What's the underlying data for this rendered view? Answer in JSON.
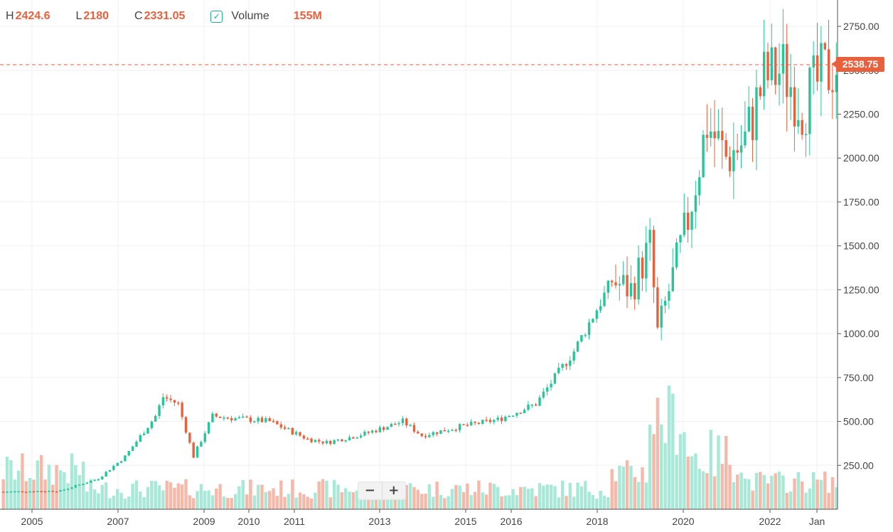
{
  "header": {
    "h_label": "H",
    "h_value": "2424.6",
    "l_label": "L",
    "l_value": "2180",
    "c_label": "C",
    "c_value": "2331.05",
    "volume_label": "Volume",
    "volume_value": "155M"
  },
  "zoom": {
    "minus": "−",
    "plus": "+"
  },
  "colors": {
    "up": "#26c59a",
    "down": "#e8613c",
    "up_volume": "#a7e8d6",
    "down_volume": "#f5b8a9",
    "grid": "#f0f0f0"
  },
  "chart_data": {
    "type": "candlestick",
    "title": "",
    "xlabel": "",
    "ylabel": "",
    "ylim": [
      0,
      2900
    ],
    "y_ticks": [
      "250.00",
      "500.00",
      "750.00",
      "1000.00",
      "1250.00",
      "1500.00",
      "1750.00",
      "2000.00",
      "2250.00",
      "2500.00",
      "2750.00"
    ],
    "x_ticks": [
      "2005",
      "2007",
      "2009",
      "2010",
      "2011",
      "2013",
      "2015",
      "2016",
      "2018",
      "2020",
      "2022",
      "Jan"
    ],
    "current_price": "2538.75",
    "trend_anchors": [
      [
        0,
        100
      ],
      [
        15,
        105
      ],
      [
        25,
        175
      ],
      [
        32,
        300
      ],
      [
        40,
        530
      ],
      [
        42,
        640
      ],
      [
        46,
        600
      ],
      [
        50,
        300
      ],
      [
        55,
        530
      ],
      [
        60,
        520
      ],
      [
        70,
        500
      ],
      [
        80,
        400
      ],
      [
        85,
        380
      ],
      [
        95,
        430
      ],
      [
        105,
        500
      ],
      [
        110,
        420
      ],
      [
        120,
        470
      ],
      [
        130,
        510
      ],
      [
        140,
        600
      ],
      [
        150,
        900
      ],
      [
        160,
        1300
      ],
      [
        165,
        1250
      ],
      [
        170,
        1500
      ],
      [
        172,
        1000
      ],
      [
        180,
        1650
      ],
      [
        185,
        2200
      ],
      [
        190,
        2000
      ],
      [
        195,
        2100
      ],
      [
        200,
        2450
      ],
      [
        205,
        2500
      ],
      [
        210,
        2300
      ],
      [
        215,
        2450
      ],
      [
        219,
        2538
      ]
    ],
    "volume_notes": "volume bars: low through 2005-2016 (~50-200M), spike to ~700M in 2020, then ~100-300M"
  }
}
